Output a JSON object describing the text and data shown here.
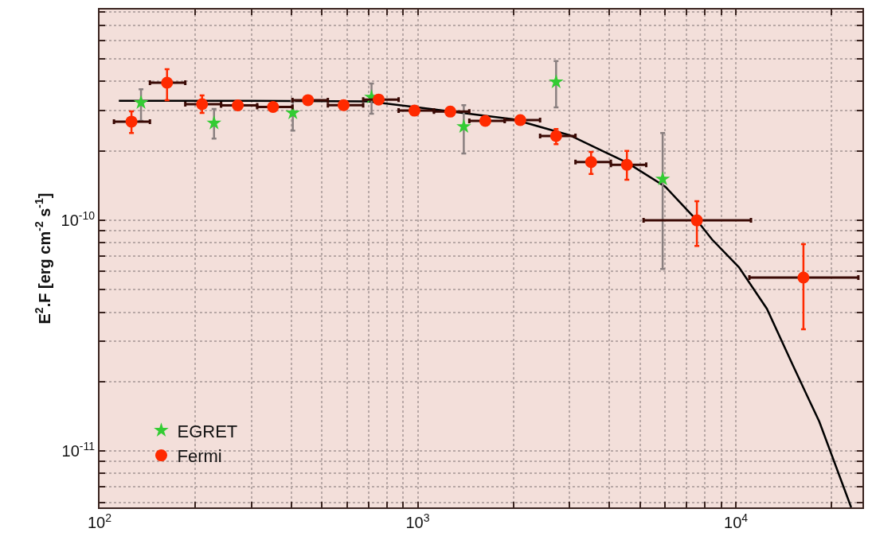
{
  "chart_data": {
    "type": "scatter",
    "ylabel": "E$^{2}$.F [erg cm$^{-2}$ s$^{-1}$]",
    "log": "xy",
    "grid": true,
    "legend": "bottom left",
    "xlim": [
      100,
      25000
    ],
    "ylim": [
      5.7e-12,
      8.2e-10
    ],
    "xticks": [
      {
        "value": 100,
        "label": "10$^{2}$"
      },
      {
        "value": 200,
        "label": null
      },
      {
        "value": 300,
        "label": null
      },
      {
        "value": 400,
        "label": null
      },
      {
        "value": 500,
        "label": null
      },
      {
        "value": 600,
        "label": null
      },
      {
        "value": 700,
        "label": null
      },
      {
        "value": 800,
        "label": null
      },
      {
        "value": 900,
        "label": null
      },
      {
        "value": 1000,
        "label": "10$^{3}$"
      },
      {
        "value": 2000,
        "label": null
      },
      {
        "value": 3000,
        "label": null
      },
      {
        "value": 4000,
        "label": null
      },
      {
        "value": 5000,
        "label": null
      },
      {
        "value": 6000,
        "label": null
      },
      {
        "value": 7000,
        "label": null
      },
      {
        "value": 8000,
        "label": null
      },
      {
        "value": 9000,
        "label": null
      },
      {
        "value": 10000,
        "label": "10$^{4}$"
      },
      {
        "value": 20000,
        "label": null
      }
    ],
    "yticks": [
      {
        "value": 6e-12,
        "label": null
      },
      {
        "value": 7e-12,
        "label": null
      },
      {
        "value": 8e-12,
        "label": null
      },
      {
        "value": 9e-12,
        "label": null
      },
      {
        "value": 1e-11,
        "label": "10$^{-11}$"
      },
      {
        "value": 2e-11,
        "label": null
      },
      {
        "value": 3e-11,
        "label": null
      },
      {
        "value": 4e-11,
        "label": null
      },
      {
        "value": 5e-11,
        "label": null
      },
      {
        "value": 6e-11,
        "label": null
      },
      {
        "value": 7e-11,
        "label": null
      },
      {
        "value": 8e-11,
        "label": null
      },
      {
        "value": 9e-11,
        "label": null
      },
      {
        "value": 1e-10,
        "label": "10$^{-10}$"
      },
      {
        "value": 2e-10,
        "label": null
      },
      {
        "value": 3e-10,
        "label": null
      },
      {
        "value": 4e-10,
        "label": null
      },
      {
        "value": 5e-10,
        "label": null
      },
      {
        "value": 6e-10,
        "label": null
      },
      {
        "value": 7e-10,
        "label": null
      },
      {
        "value": 8e-10,
        "label": null
      }
    ],
    "series": [
      {
        "type": "line",
        "color": "#000000",
        "marker": "none",
        "x": [
          115,
          300,
          700,
          1000,
          2000,
          3000,
          4545,
          6000,
          7543,
          8414,
          10230,
          12520,
          15140,
          18300,
          23040
        ],
        "values": [
          3.3e-10,
          3.3e-10,
          3.28e-10,
          3.09e-10,
          2.74e-10,
          2.34e-10,
          1.78e-10,
          1.4e-10,
          1e-10,
          8.27e-11,
          6.26e-11,
          4.14e-11,
          2.34e-11,
          1.34e-11,
          5.7e-12
        ]
      },
      {
        "name": "EGRET",
        "color": "#33cc33",
        "marker": "star",
        "x": [
          135,
          229,
          405,
          716,
          1396,
          2723,
          5888
        ],
        "values": [
          3.24e-10,
          2.64e-10,
          2.92e-10,
          3.42e-10,
          2.55e-10,
          3.98e-10,
          1.51e-10
        ],
        "errors": [
          [
            2.7e-10,
            3.7e-10
          ],
          [
            2.26e-10,
            3.04e-10
          ],
          [
            2.45e-10,
            3.29e-10
          ],
          [
            2.9e-10,
            3.92e-10
          ],
          [
            1.95e-10,
            3.16e-10
          ],
          [
            3.09e-10,
            4.9e-10
          ],
          [
            6.16e-11,
            2.39e-10
          ]
        ]
      },
      {
        "name": "Fermi",
        "color": "#ff2a00",
        "marker": "circle",
        "x": [
          126,
          163,
          210,
          272,
          351,
          452,
          585,
          754,
          977,
          1266,
          1631,
          2101,
          2723,
          3508,
          4545,
          7543,
          16310
        ],
        "values": [
          2.68e-10,
          3.95e-10,
          3.19e-10,
          3.15e-10,
          3.1e-10,
          3.32e-10,
          3.16e-10,
          3.34e-10,
          2.99e-10,
          2.96e-10,
          2.7e-10,
          2.72e-10,
          2.32e-10,
          1.79e-10,
          1.74e-10,
          1e-10,
          5.65e-11
        ],
        "errors": [
          [
            2.39e-10,
            2.97e-10
          ],
          [
            3.32e-10,
            4.52e-10
          ],
          [
            2.92e-10,
            3.48e-10
          ],
          null,
          null,
          null,
          null,
          null,
          null,
          null,
          null,
          null,
          [
            2.14e-10,
            2.49e-10
          ],
          [
            1.59e-10,
            1.98e-10
          ],
          [
            1.5e-10,
            2e-10
          ],
          [
            7.75e-11,
            1.21e-10
          ],
          [
            3.37e-11,
            7.88e-11
          ]
        ],
        "xerrors": [
          [
            111,
            144
          ],
          [
            144,
            186
          ],
          [
            186,
            241
          ],
          [
            241,
            313
          ],
          [
            313,
            404
          ],
          [
            404,
            522
          ],
          [
            522,
            674
          ],
          [
            674,
            871
          ],
          [
            871,
            1125
          ],
          [
            1125,
            1453
          ],
          [
            1453,
            1877
          ],
          [
            1877,
            2425
          ],
          [
            2425,
            3133
          ],
          [
            3133,
            4047
          ],
          [
            4047,
            5228
          ],
          [
            5129,
            11156
          ],
          [
            11030,
            24270
          ]
        ]
      }
    ]
  }
}
